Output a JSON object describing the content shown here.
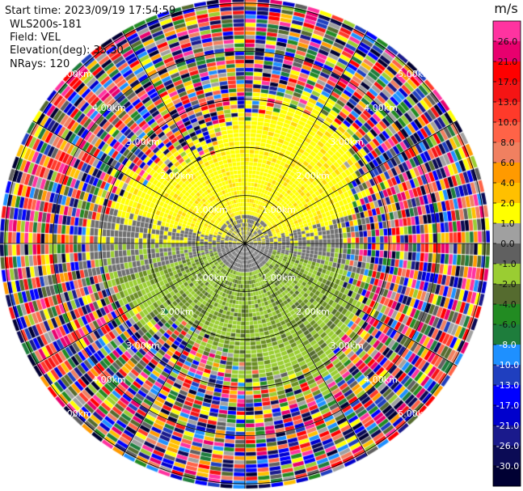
{
  "header": {
    "start_time": "Start time: 2023/09/19 17:54:59",
    "instrument": "WLS200s-181",
    "field": "Field: VEL",
    "elevation": "Elevation(deg): 35.30",
    "nrays": "NRays: 120"
  },
  "colorbar": {
    "unit": "m/s",
    "ticks": [
      "26.0",
      "21.0",
      "17.0",
      "13.0",
      "10.0",
      "8.0",
      "6.0",
      "4.0",
      "2.0",
      "1.0",
      "0.0",
      "-1.0",
      "-2.0",
      "-4.0",
      "-6.0",
      "-8.0",
      "-10.0",
      "-13.0",
      "-17.0",
      "-21.0",
      "-26.0",
      "-30.0"
    ],
    "colors": [
      "#ff33a0",
      "#e8006e",
      "#ff0000",
      "#f51414",
      "#ff3a2a",
      "#ff6347",
      "#f08060",
      "#ff9a00",
      "#ffc000",
      "#ffff00",
      "#a0a0a0",
      "#606060",
      "#9acd32",
      "#556b2f",
      "#228b22",
      "#1e7d3c",
      "#1e90ff",
      "#1f3fbf",
      "#0000ff",
      "#0000cd",
      "#1a1a8c",
      "#0b0b55",
      "#000033"
    ]
  },
  "chart_data": {
    "type": "ppi_polar",
    "field": "VEL",
    "units": "m/s",
    "n_rays": 120,
    "elevation_deg": 35.3,
    "range_rings_km": [
      1,
      2,
      3,
      4,
      5
    ],
    "ring_label_text": [
      "1.00km",
      "2.00km",
      "3.00km",
      "4.00km",
      "5.00km"
    ],
    "ring_label_azimuths_deg": [
      45,
      135,
      225,
      315
    ],
    "azimuth_lines_deg": [
      0,
      30,
      60,
      90,
      120,
      150,
      180,
      210,
      240,
      270,
      300,
      330
    ],
    "max_range_km": 5.1,
    "velocity_levels": [
      -30,
      -26,
      -21,
      -17,
      -13,
      -10,
      -8,
      -6,
      -4,
      -2,
      -1,
      0,
      1,
      2,
      4,
      6,
      8,
      10,
      13,
      17,
      21,
      26
    ]
  }
}
